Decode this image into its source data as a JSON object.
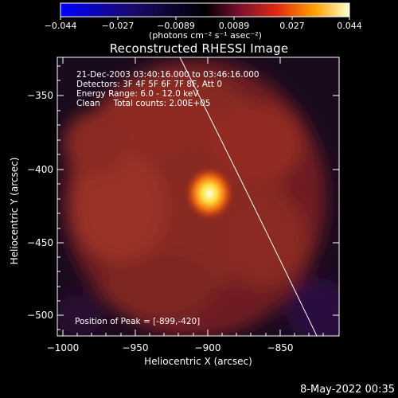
{
  "colorbar": {
    "ticks": [
      "−0.044",
      "−0.027",
      "−0.0089",
      "0.0089",
      "0.027",
      "0.044"
    ],
    "units": "(photons cm⁻² s⁻¹ asec⁻²)"
  },
  "title": "Reconstructed RHESSI Image",
  "info": {
    "time": "21-Dec-2003 03:40:16.000 to 03:46:16.000",
    "detectors": "Detectors: 3F 4F 5F 6F 7F 8F, Att 0",
    "energy": "Energy Range: 6.0 - 12.0 keV",
    "clean": "Clean     Total counts: 2.00E+05"
  },
  "axes": {
    "xlabel": "Heliocentric X (arcsec)",
    "ylabel": "Heliocentric Y (arcsec)",
    "xticks": [
      "−1000",
      "−950",
      "−900",
      "−850"
    ],
    "yticks": [
      "−350",
      "−400",
      "−450",
      "−500"
    ]
  },
  "peak": "Position of Peak = [-899,-420]",
  "footer_date": "8-May-2022 00:35"
}
